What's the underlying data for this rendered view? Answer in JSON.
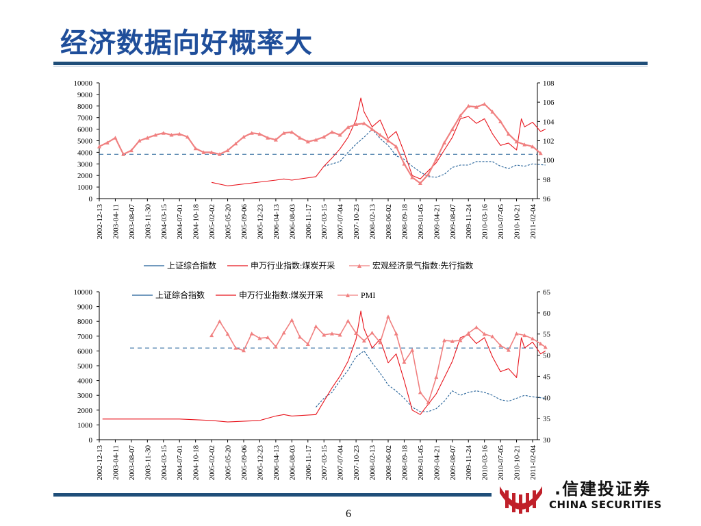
{
  "page": {
    "title": "经济数据向好概率大",
    "page_number": "6",
    "logo_cn": ".信建投证券",
    "logo_en": "CHINA SECURITIES",
    "colors": {
      "title": "#1f4e9a",
      "rule": "#1f4e79",
      "shanghai": "#1f5e96",
      "coal": "#e8141c",
      "indicator": "#f08080",
      "logo_red": "#c0202a"
    }
  },
  "chart_data": [
    {
      "type": "line",
      "x_ticks": [
        "2002-12-13",
        "2003-04-11",
        "2003-08-07",
        "2003-11-30",
        "2004-03-15",
        "2004-07-01",
        "2004-10-18",
        "2005-02-02",
        "2005-05-20",
        "2005-09-06",
        "2005-12-23",
        "2006-04-13",
        "2006-08-03",
        "2006-11-17",
        "2007-03-15",
        "2007-07-04",
        "2007-10-23",
        "2008-02-13",
        "2008-06-02",
        "2008-09-18",
        "2009-01-05",
        "2009-04-21",
        "2009-08-07",
        "2009-11-24",
        "2010-03-16",
        "2010-07-05",
        "2010-10-21",
        "2011-02-04"
      ],
      "y_left": {
        "ticks": [
          "0",
          "1000",
          "2000",
          "3000",
          "4000",
          "5000",
          "6000",
          "7000",
          "8000",
          "9000",
          "10000"
        ],
        "ylim": [
          0,
          10000
        ]
      },
      "y_right": {
        "ticks": [
          "96",
          "98",
          "100",
          "102",
          "104",
          "106",
          "108"
        ],
        "ylim": [
          96,
          108
        ]
      },
      "reference_line_right": 100.6,
      "legend": [
        "上证综合指数",
        "申万行业指数:煤炭开采",
        "宏观经济景气指数:先行指数"
      ],
      "series": [
        {
          "name": "上证综合指数",
          "axis": "left",
          "x": [
            14,
            15,
            15.5,
            16,
            16.5,
            17,
            17.5,
            18,
            18.5,
            19,
            19.5,
            20,
            20.5,
            21,
            21.5,
            22,
            22.5,
            23,
            23.5,
            24,
            24.5,
            25,
            25.5,
            26,
            26.5,
            27,
            27.8
          ],
          "values": [
            2800,
            3200,
            4000,
            4700,
            5300,
            6000,
            5200,
            4600,
            3700,
            3400,
            2800,
            2300,
            1900,
            1850,
            2100,
            2700,
            2900,
            2900,
            3200,
            3200,
            3200,
            2800,
            2600,
            2900,
            2800,
            3000,
            2900
          ]
        },
        {
          "name": "申万行业指数:煤炭开采",
          "axis": "left",
          "x": [
            7,
            8,
            11,
            11.5,
            12,
            13.5,
            14,
            14.5,
            15,
            15.5,
            16,
            16.3,
            16.5,
            17,
            17.5,
            18,
            18.5,
            19,
            19.5,
            20,
            20.5,
            21,
            21.5,
            22,
            22.5,
            23,
            23.5,
            24,
            24.5,
            25,
            25.5,
            26,
            26.3,
            26.5,
            27,
            27.5,
            27.8
          ],
          "values": [
            1400,
            1100,
            1600,
            1700,
            1600,
            1900,
            2800,
            3500,
            4300,
            5300,
            6800,
            8700,
            7500,
            6200,
            6800,
            5200,
            5800,
            4000,
            2000,
            1700,
            2400,
            3100,
            4200,
            5300,
            6900,
            7100,
            6500,
            6900,
            5600,
            4600,
            4800,
            4200,
            6900,
            6200,
            6600,
            5800,
            6000
          ]
        },
        {
          "name": "宏观经济景气指数:先行指数",
          "axis": "right",
          "x": [
            0,
            0.5,
            1,
            1.5,
            2,
            2.5,
            3,
            3.5,
            4,
            4.5,
            5,
            5.5,
            6,
            6.5,
            7,
            7.5,
            8,
            8.5,
            9,
            9.5,
            10,
            10.5,
            11,
            11.5,
            12,
            12.5,
            13,
            13.5,
            14,
            14.5,
            15,
            15.5,
            16,
            16.5,
            17,
            17.5,
            18,
            18.5,
            19,
            19.5,
            20,
            20.5,
            21,
            21.5,
            22,
            22.5,
            23,
            23.5,
            24,
            24.5,
            25,
            25.5,
            26,
            26.5,
            27,
            27.5
          ],
          "values": [
            101.4,
            101.8,
            102.3,
            100.6,
            101.0,
            102.0,
            102.3,
            102.6,
            102.8,
            102.6,
            102.7,
            102.4,
            101.2,
            100.8,
            100.8,
            100.6,
            101.0,
            101.7,
            102.4,
            102.8,
            102.7,
            102.3,
            102.1,
            102.8,
            102.9,
            102.3,
            101.9,
            102.1,
            102.4,
            102.9,
            102.6,
            103.4,
            103.7,
            103.8,
            103.2,
            102.6,
            102.0,
            101.4,
            99.6,
            98.2,
            97.6,
            98.5,
            100.1,
            101.8,
            103.2,
            104.6,
            105.6,
            105.5,
            105.8,
            105.0,
            104.0,
            102.7,
            101.9,
            101.6,
            101.4,
            100.7
          ]
        }
      ]
    },
    {
      "type": "line",
      "x_ticks": [
        "2002-12-13",
        "2003-04-11",
        "2003-08-07",
        "2003-11-30",
        "2004-03-15",
        "2004-07-01",
        "2004-10-18",
        "2005-02-02",
        "2005-05-20",
        "2005-09-06",
        "2005-12-23",
        "2006-04-13",
        "2006-08-03",
        "2006-11-17",
        "2007-03-15",
        "2007-07-04",
        "2007-10-23",
        "2008-02-13",
        "2008-06-02",
        "2008-09-18",
        "2009-01-05",
        "2009-04-21",
        "2009-08-07",
        "2009-11-24",
        "2010-03-16",
        "2010-07-05",
        "2010-10-21",
        "2011-02-04"
      ],
      "y_left": {
        "ticks": [
          "0",
          "1000",
          "2000",
          "3000",
          "4000",
          "5000",
          "6000",
          "7000",
          "8000",
          "9000",
          "10000"
        ],
        "ylim": [
          0,
          10000
        ]
      },
      "y_right": {
        "ticks": [
          "30",
          "35",
          "40",
          "45",
          "50",
          "55",
          "60",
          "65"
        ],
        "ylim": [
          30,
          65
        ]
      },
      "reference_line_right": 51.7,
      "legend": [
        "上证综合指数",
        "申万行业指数:煤炭开采",
        "PMI"
      ],
      "series": [
        {
          "name": "上证综合指数",
          "axis": "left",
          "x": [
            13.5,
            14,
            14.5,
            15,
            15.5,
            16,
            16.5,
            17,
            17.5,
            18,
            18.5,
            19,
            19.5,
            20,
            20.5,
            21,
            21.5,
            22,
            22.5,
            23,
            23.5,
            24,
            24.5,
            25,
            25.5,
            26,
            26.5,
            27,
            27.8
          ],
          "values": [
            2200,
            2800,
            3200,
            4000,
            4700,
            5600,
            6000,
            5200,
            4500,
            3700,
            3300,
            2800,
            2200,
            1900,
            1900,
            2100,
            2600,
            3300,
            3000,
            3200,
            3300,
            3200,
            3000,
            2700,
            2600,
            2800,
            3000,
            2900,
            2800
          ]
        },
        {
          "name": "申万行业指数:煤炭开采",
          "axis": "left",
          "x": [
            0.2,
            3,
            5,
            7,
            8,
            10,
            11,
            11.5,
            12,
            13.5,
            14,
            14.5,
            15,
            15.5,
            16,
            16.3,
            16.5,
            17,
            17.5,
            18,
            18.5,
            19,
            19.5,
            20,
            20.5,
            21,
            21.5,
            22,
            22.5,
            23,
            23.5,
            24,
            24.5,
            25,
            25.5,
            26,
            26.3,
            26.5,
            27,
            27.5,
            27.8
          ],
          "values": [
            1400,
            1400,
            1400,
            1300,
            1200,
            1300,
            1600,
            1700,
            1600,
            1700,
            2600,
            3500,
            4300,
            5300,
            6800,
            8700,
            7500,
            6200,
            6800,
            5200,
            5800,
            4000,
            2000,
            1700,
            2400,
            3100,
            4200,
            5300,
            6900,
            7100,
            6500,
            6900,
            5600,
            4600,
            4800,
            4200,
            6900,
            6200,
            6600,
            5800,
            6000
          ]
        },
        {
          "name": "PMI",
          "axis": "right",
          "x": [
            7,
            7.5,
            8,
            8.5,
            9,
            9.5,
            10,
            10.5,
            11,
            11.5,
            12,
            12.5,
            13,
            13.5,
            14,
            14.5,
            15,
            15.5,
            16,
            16.5,
            17,
            17.5,
            18,
            18.5,
            19,
            19.5,
            20,
            20.5,
            21,
            21.5,
            22,
            22.5,
            23,
            23.5,
            24,
            24.5,
            25,
            25.5,
            26,
            26.5,
            27,
            27.5,
            27.8
          ],
          "values": [
            54.7,
            58.0,
            55.0,
            51.7,
            51.1,
            55.1,
            54.0,
            54.2,
            52.0,
            55.3,
            58.3,
            54.3,
            52.6,
            56.8,
            54.8,
            55.1,
            54.8,
            58.1,
            55.2,
            53.4,
            55.3,
            53.0,
            59.1,
            55.1,
            48.4,
            51.2,
            41.2,
            38.8,
            44.8,
            53.5,
            53.3,
            53.5,
            55.2,
            56.6,
            55.0,
            54.4,
            52.3,
            51.2,
            55.1,
            54.7,
            53.9,
            52.7,
            51.9
          ]
        }
      ]
    }
  ]
}
